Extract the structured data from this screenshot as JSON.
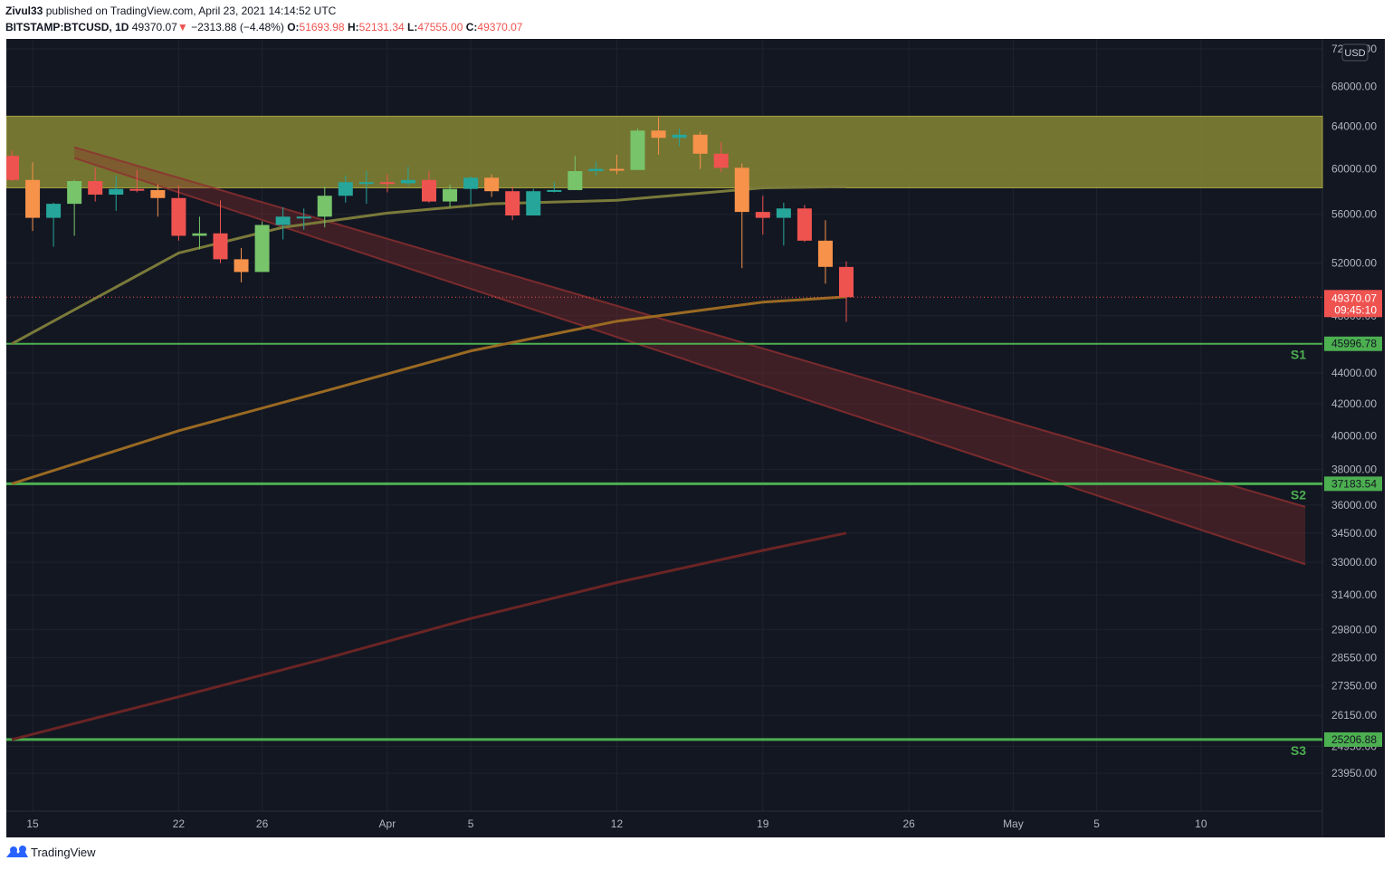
{
  "header": {
    "author": "Zivul33",
    "published_text": " published on TradingView.com, April 23, 2021 14:14:52 UTC",
    "symbol": "BITSTAMP:BTCUSD, 1D",
    "last": "49370.07",
    "change_arrow": "▼",
    "change": "−2313.88 (−4.48%)",
    "o_label": "O:",
    "o_value": "51693.98",
    "h_label": "H:",
    "h_value": "52131.34",
    "l_label": "L:",
    "l_value": "47555.00",
    "c_label": "C:",
    "c_value": "49370.07"
  },
  "footer": {
    "brand": "TradingView",
    "icon": "tradingview-logo-icon"
  },
  "colors": {
    "background": "#131722",
    "grid": "#1f2330",
    "up": "#26a69a",
    "up_light": "#77c46a",
    "down": "#ef5350",
    "down_orange": "#f7924a",
    "resistance_zone": "#8a8a34",
    "support_line": "#4caf50",
    "channel": "#8f2f2f",
    "ma_short": "#7a7a3a",
    "ma_mid": "#9a6a22",
    "ma_long": "#6a2424"
  },
  "chart_data": {
    "type": "candlestick",
    "symbol": "BITSTAMP:BTCUSD",
    "interval": "1D",
    "currency": "USD",
    "y_scale": "log",
    "ylim": [
      23400,
      72600
    ],
    "y_ticks": [
      72000,
      68000,
      64000,
      60000,
      56000,
      52000,
      48000,
      44000,
      42000,
      40000,
      38000,
      36000,
      34500,
      33000,
      31400,
      29800,
      28550,
      27350,
      26150,
      24950,
      23950
    ],
    "y_tick_labels": [
      "72000.00",
      "68000.00",
      "64000.00",
      "60000.00",
      "56000.00",
      "52000.00",
      "48000.00",
      "44000.00",
      "42000.00",
      "40000.00",
      "38000.00",
      "36000.00",
      "34500.00",
      "33000.00",
      "31400.00",
      "29800.00",
      "28550.00",
      "27350.00",
      "26150.00",
      "24950.00",
      "23950.00"
    ],
    "x_ticks": [
      {
        "label": "15",
        "date": "2021-03-15"
      },
      {
        "label": "22",
        "date": "2021-03-22"
      },
      {
        "label": "26",
        "date": "2021-03-26"
      },
      {
        "label": "Apr",
        "date": "2021-04-01"
      },
      {
        "label": "5",
        "date": "2021-04-05"
      },
      {
        "label": "12",
        "date": "2021-04-12"
      },
      {
        "label": "19",
        "date": "2021-04-19"
      },
      {
        "label": "26",
        "date": "2021-04-26"
      },
      {
        "label": "May",
        "date": "2021-05-01"
      },
      {
        "label": "5",
        "date": "2021-05-05"
      },
      {
        "label": "10",
        "date": "2021-05-10"
      }
    ],
    "candles": [
      {
        "date": "2021-03-14",
        "o": 61200,
        "h": 61700,
        "l": 58900,
        "c": 59000
      },
      {
        "date": "2021-03-15",
        "o": 59000,
        "h": 60600,
        "l": 54600,
        "c": 55700
      },
      {
        "date": "2021-03-16",
        "o": 55700,
        "h": 57000,
        "l": 53300,
        "c": 56900
      },
      {
        "date": "2021-03-17",
        "o": 56900,
        "h": 59000,
        "l": 54200,
        "c": 58900
      },
      {
        "date": "2021-03-18",
        "o": 58900,
        "h": 60100,
        "l": 57100,
        "c": 57700
      },
      {
        "date": "2021-03-19",
        "o": 57700,
        "h": 59400,
        "l": 56300,
        "c": 58200
      },
      {
        "date": "2021-03-20",
        "o": 58200,
        "h": 59900,
        "l": 57900,
        "c": 58100
      },
      {
        "date": "2021-03-21",
        "o": 58100,
        "h": 58600,
        "l": 55800,
        "c": 57400
      },
      {
        "date": "2021-03-22",
        "o": 57400,
        "h": 58500,
        "l": 53800,
        "c": 54200
      },
      {
        "date": "2021-03-23",
        "o": 54200,
        "h": 55800,
        "l": 53100,
        "c": 54400
      },
      {
        "date": "2021-03-24",
        "o": 54400,
        "h": 57200,
        "l": 52000,
        "c": 52300
      },
      {
        "date": "2021-03-25",
        "o": 52300,
        "h": 53200,
        "l": 50500,
        "c": 51300
      },
      {
        "date": "2021-03-26",
        "o": 51300,
        "h": 55400,
        "l": 51300,
        "c": 55100
      },
      {
        "date": "2021-03-27",
        "o": 55100,
        "h": 56600,
        "l": 53900,
        "c": 55800
      },
      {
        "date": "2021-03-28",
        "o": 55800,
        "h": 56500,
        "l": 54700,
        "c": 55800
      },
      {
        "date": "2021-03-29",
        "o": 55800,
        "h": 58400,
        "l": 54900,
        "c": 57600
      },
      {
        "date": "2021-03-30",
        "o": 57600,
        "h": 59400,
        "l": 57000,
        "c": 58800
      },
      {
        "date": "2021-03-31",
        "o": 58800,
        "h": 59800,
        "l": 56900,
        "c": 58800
      },
      {
        "date": "2021-04-01",
        "o": 58800,
        "h": 59500,
        "l": 57900,
        "c": 58700
      },
      {
        "date": "2021-04-02",
        "o": 58700,
        "h": 60200,
        "l": 58500,
        "c": 59000
      },
      {
        "date": "2021-04-03",
        "o": 59000,
        "h": 59800,
        "l": 57000,
        "c": 57100
      },
      {
        "date": "2021-04-04",
        "o": 57100,
        "h": 58600,
        "l": 56600,
        "c": 58200
      },
      {
        "date": "2021-04-05",
        "o": 58200,
        "h": 59300,
        "l": 56800,
        "c": 59200
      },
      {
        "date": "2021-04-06",
        "o": 59200,
        "h": 59500,
        "l": 57500,
        "c": 58000
      },
      {
        "date": "2021-04-07",
        "o": 58000,
        "h": 58400,
        "l": 55500,
        "c": 55900
      },
      {
        "date": "2021-04-08",
        "o": 55900,
        "h": 58200,
        "l": 55900,
        "c": 58000
      },
      {
        "date": "2021-04-09",
        "o": 58000,
        "h": 58800,
        "l": 57900,
        "c": 58100
      },
      {
        "date": "2021-04-10",
        "o": 58100,
        "h": 61200,
        "l": 58100,
        "c": 59800
      },
      {
        "date": "2021-04-11",
        "o": 59800,
        "h": 60700,
        "l": 59400,
        "c": 60000
      },
      {
        "date": "2021-04-12",
        "o": 60000,
        "h": 61300,
        "l": 59500,
        "c": 59900
      },
      {
        "date": "2021-04-13",
        "o": 59900,
        "h": 63800,
        "l": 59900,
        "c": 63600
      },
      {
        "date": "2021-04-14",
        "o": 63600,
        "h": 64900,
        "l": 61300,
        "c": 62900
      },
      {
        "date": "2021-04-15",
        "o": 62900,
        "h": 63800,
        "l": 62100,
        "c": 63200
      },
      {
        "date": "2021-04-16",
        "o": 63200,
        "h": 63500,
        "l": 60000,
        "c": 61400
      },
      {
        "date": "2021-04-17",
        "o": 61400,
        "h": 62500,
        "l": 59700,
        "c": 60100
      },
      {
        "date": "2021-04-18",
        "o": 60100,
        "h": 60500,
        "l": 51600,
        "c": 56200
      },
      {
        "date": "2021-04-19",
        "o": 56200,
        "h": 57600,
        "l": 54300,
        "c": 55700
      },
      {
        "date": "2021-04-20",
        "o": 55700,
        "h": 57000,
        "l": 53400,
        "c": 56500
      },
      {
        "date": "2021-04-21",
        "o": 56500,
        "h": 56800,
        "l": 53700,
        "c": 53800
      },
      {
        "date": "2021-04-22",
        "o": 53800,
        "h": 55500,
        "l": 50400,
        "c": 51700
      },
      {
        "date": "2021-04-23",
        "o": 51694,
        "h": 52131,
        "l": 47555,
        "c": 49370
      }
    ],
    "last_price": {
      "value": "49370.07",
      "countdown": "09:45:10"
    },
    "resistance_zone": {
      "low": 58300,
      "high": 65000
    },
    "support_levels": [
      {
        "name": "S1",
        "value": 45996.78,
        "label": "45996.78"
      },
      {
        "name": "S2",
        "value": 37183.54,
        "label": "37183.54"
      },
      {
        "name": "S3",
        "value": 25206.88,
        "label": "25206.88"
      }
    ],
    "descending_channel": {
      "upper": [
        {
          "date": "2021-03-17",
          "price": 62000
        },
        {
          "date": "2021-05-15",
          "price": 35900
        }
      ],
      "lower": [
        {
          "date": "2021-03-17",
          "price": 61000
        },
        {
          "date": "2021-05-15",
          "price": 32900
        }
      ]
    },
    "moving_averages": [
      {
        "points": [
          [
            "2021-03-14",
            45996
          ],
          [
            "2021-03-22",
            52800
          ],
          [
            "2021-03-27",
            54900
          ],
          [
            "2021-04-01",
            56100
          ],
          [
            "2021-04-06",
            56900
          ],
          [
            "2021-04-12",
            57200
          ],
          [
            "2021-04-19",
            58300
          ],
          [
            "2021-04-23",
            58400
          ]
        ]
      },
      {
        "points": [
          [
            "2021-03-14",
            37183
          ],
          [
            "2021-03-22",
            40300
          ],
          [
            "2021-03-29",
            42800
          ],
          [
            "2021-04-05",
            45500
          ],
          [
            "2021-04-12",
            47600
          ],
          [
            "2021-04-19",
            49000
          ],
          [
            "2021-04-23",
            49400
          ]
        ]
      },
      {
        "points": [
          [
            "2021-03-14",
            25206
          ],
          [
            "2021-03-22",
            26900
          ],
          [
            "2021-03-29",
            28500
          ],
          [
            "2021-04-05",
            30300
          ],
          [
            "2021-04-12",
            32000
          ],
          [
            "2021-04-19",
            33600
          ],
          [
            "2021-04-23",
            34500
          ]
        ]
      }
    ]
  }
}
